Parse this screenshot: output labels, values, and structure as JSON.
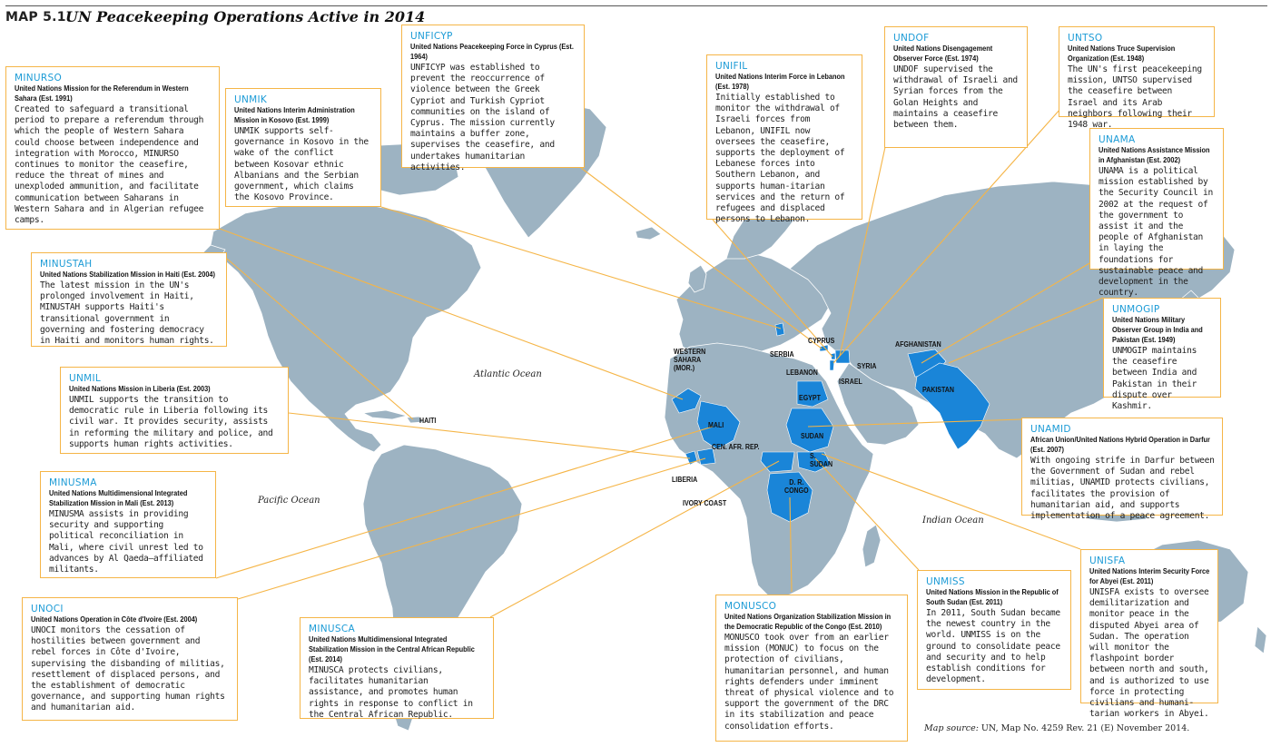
{
  "map_number": "MAP 5.1",
  "map_title": "UN Peacekeeping Operations Active in 2014",
  "colors": {
    "land": "#9db3c2",
    "highlight": "#1a85d8",
    "callout_border": "#f5b547",
    "acronym": "#1c9bd6",
    "ocean": "#ffffff"
  },
  "oceans": {
    "atlantic": "Atlantic Ocean",
    "pacific": "Pacific Ocean",
    "indian": "Indian Ocean"
  },
  "country_labels": {
    "western_sahara": "WESTERN\nSAHARA\n(MOR.)",
    "haiti": "HAITI",
    "mali": "MALI",
    "liberia": "LIBERIA",
    "ivory_coast": "IVORY COAST",
    "serbia": "SERBIA",
    "cyprus": "CYPRUS",
    "lebanon": "LEBANON",
    "syria": "SYRIA",
    "israel": "ISRAEL",
    "egypt": "EGYPT",
    "sudan": "SUDAN",
    "south_sudan": "S.\nSUDAN",
    "car": "CEN. AFR. REP.",
    "drc": "D. R.\nCONGO",
    "afghanistan": "AFGHANISTAN",
    "pakistan": "PAKISTAN"
  },
  "missions": {
    "minurso": {
      "acronym": "MINURSO",
      "full_name": "United Nations Mission for the Referendum in Western Sahara (Est. 1991)",
      "description": "Created to safeguard a transitional period to prepare a referendum through which the people of Western Sahara could choose between independence and integration with Morocco, MINURSO continues to monitor the ceasefire, reduce the threat of mines and unexploded ammunition, and facilitate communication between Saharans in Western Sahara and in Algerian refugee camps."
    },
    "unmik": {
      "acronym": "UNMIK",
      "full_name": "United Nations Interim Administration Mission in Kosovo (Est. 1999)",
      "description": "UNMIK supports self-governance in Kosovo in the wake of the conflict between Kosovar ethnic Albanians and the Serbian government, which claims the Kosovo Province."
    },
    "unficyp": {
      "acronym": "UNFICYP",
      "full_name": "United Nations Peacekeeping Force in Cyprus (Est. 1964)",
      "description": "UNFICYP was established to prevent the reoccurrence of violence between the Greek Cypriot and Turkish Cypriot communities on the island of Cyprus. The mission currently maintains a buffer zone, supervises the ceasefire, and undertakes humanitarian activities."
    },
    "unifil": {
      "acronym": "UNIFIL",
      "full_name": "United Nations Interim Force in Lebanon (Est. 1978)",
      "description": "Initially established to monitor the withdrawal of Israeli forces from Lebanon, UNIFIL now oversees the ceasefire, supports the deployment of Lebanese forces into Southern Lebanon, and supports human-itarian services and the return of refugees and displaced persons to Lebanon."
    },
    "undof": {
      "acronym": "UNDOF",
      "full_name": "United Nations Disengagement Observer Force (Est. 1974)",
      "description": "UNDOF supervised the withdrawal of Israeli and Syrian forces from the Golan Heights and maintains a ceasefire between them."
    },
    "untso": {
      "acronym": "UNTSO",
      "full_name": "United Nations Truce Supervision Organization (Est. 1948)",
      "description": "The UN's first peacekeeping mission, UNTSO supervised the ceasefire between Israel and its Arab neighbors following their 1948 war."
    },
    "unama": {
      "acronym": "UNAMA",
      "full_name": "United Nations Assistance Mission in Afghanistan (Est. 2002)",
      "description": "UNAMA is a political mission established by the Security Council in 2002 at the request of the government to assist it and the people of Afghanistan in laying the foundations for sustainable peace and development in the country."
    },
    "minustah": {
      "acronym": "MINUSTAH",
      "full_name": "United Nations Stabilization Mission in Haiti (Est. 2004)",
      "description": "The latest mission in the UN's prolonged involvement in Haiti, MINUSTAH supports Haiti's transitional government in governing and fostering democracy in Haiti and monitors human rights."
    },
    "unmogip": {
      "acronym": "UNMOGIP",
      "full_name": "United Nations Military Observer Group in India and Pakistan (Est. 1949)",
      "description": "UNMOGIP maintains the ceasefire between India and Pakistan in their dispute over Kashmir."
    },
    "unmil": {
      "acronym": "UNMIL",
      "full_name": "United Nations Mission in Liberia (Est. 2003)",
      "description": "UNMIL supports the transition to democratic rule in Liberia following its civil war. It provides security, assists in reforming the military and police, and supports human rights activities."
    },
    "unamid": {
      "acronym": "UNAMID",
      "full_name": "African Union/United Nations Hybrid Operation in Darfur (Est. 2007)",
      "description": "With ongoing strife in Darfur between the Government of Sudan and rebel militias, UNAMID protects civilians, facilitates the provision of humanitarian aid, and supports implementation of a peace agreement."
    },
    "minusma": {
      "acronym": "MINUSMA",
      "full_name": "United Nations Multidimensional Integrated Stabilization Mission in Mali (Est. 2013)",
      "description": "MINUSMA assists in providing security and supporting political reconciliation in Mali, where civil unrest led to advances by Al Qaeda–affiliated militants."
    },
    "unisfa": {
      "acronym": "UNISFA",
      "full_name": "United Nations Interim Security Force for Abyei (Est. 2011)",
      "description": "UNISFA exists to oversee demilitarization and monitor peace in the disputed Abyei area of Sudan. The operation will monitor the flashpoint border between north and south, and is authorized to use force in protecting civilians and humani-tarian workers in Abyei."
    },
    "unmiss": {
      "acronym": "UNMISS",
      "full_name": "United Nations Mission in the Republic of South Sudan (Est. 2011)",
      "description": "In 2011, South Sudan became the newest country in the world. UNMISS is on the ground to consolidate peace and security and to help establish conditions for development."
    },
    "unoci": {
      "acronym": "UNOCI",
      "full_name": "United Nations Operation in Côte d'Ivoire (Est. 2004)",
      "description": "UNOCI monitors the cessation of hostilities between government and rebel forces in Côte d'Ivoire, supervising the disbanding of militias, resettlement of displaced persons, and the establishment of democratic governance, and supporting human rights and humanitarian aid."
    },
    "minusca": {
      "acronym": "MINUSCA",
      "full_name": "United Nations Multidimensional Integrated Stabilization Mission in the Central African Republic (Est. 2014)",
      "description": "MINUSCA protects civilians, facilitates humanitarian assistance, and promotes human rights in response to conflict in the Central African Republic."
    },
    "monusco": {
      "acronym": "MONUSCO",
      "full_name": "United Nations Organization Stabilization Mission in the Democratic Republic of the Congo (Est. 2010)",
      "description": "MONUSCO took over from an earlier mission (MONUC) to focus on the protection of civilians, humanitarian personnel, and human rights defenders under imminent threat of physical violence and to support the government of the DRC in its stabilization and peace consolidation efforts."
    }
  },
  "source": {
    "label": "Map source:",
    "text": "UN, Map No. 4259 Rev. 21 (E) November 2014."
  }
}
